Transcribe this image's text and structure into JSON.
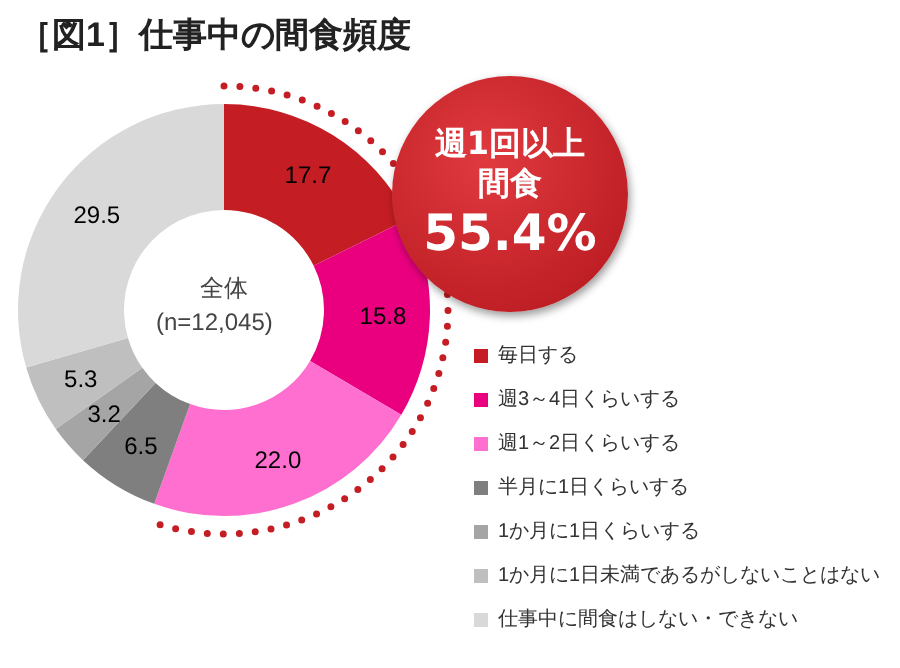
{
  "chart_data": {
    "type": "donut",
    "title": "［図1］仕事中の間食頻度",
    "categories": [
      "毎日する",
      "週3～4日くらいする",
      "週1～2日くらいする",
      "半月に1日くらいする",
      "1か月に1日くらいする",
      "1か月に1日未満であるがしないことはない",
      "仕事中に間食はしない・できない"
    ],
    "values": [
      17.7,
      15.8,
      22.0,
      6.5,
      3.2,
      5.3,
      29.5
    ],
    "colors": [
      "#c41e24",
      "#ea007f",
      "#ff6fcf",
      "#7f7f7f",
      "#a5a5a5",
      "#bfbfbf",
      "#d9d9d9"
    ],
    "value_labels": [
      "17.7",
      "15.8",
      "22.0",
      "6.5",
      "3.2",
      "5.3",
      "29.5"
    ],
    "legend": "right",
    "annotations": [
      "全体",
      "(n=12,045)",
      "週1回以上間食",
      "55.4%"
    ]
  }
}
